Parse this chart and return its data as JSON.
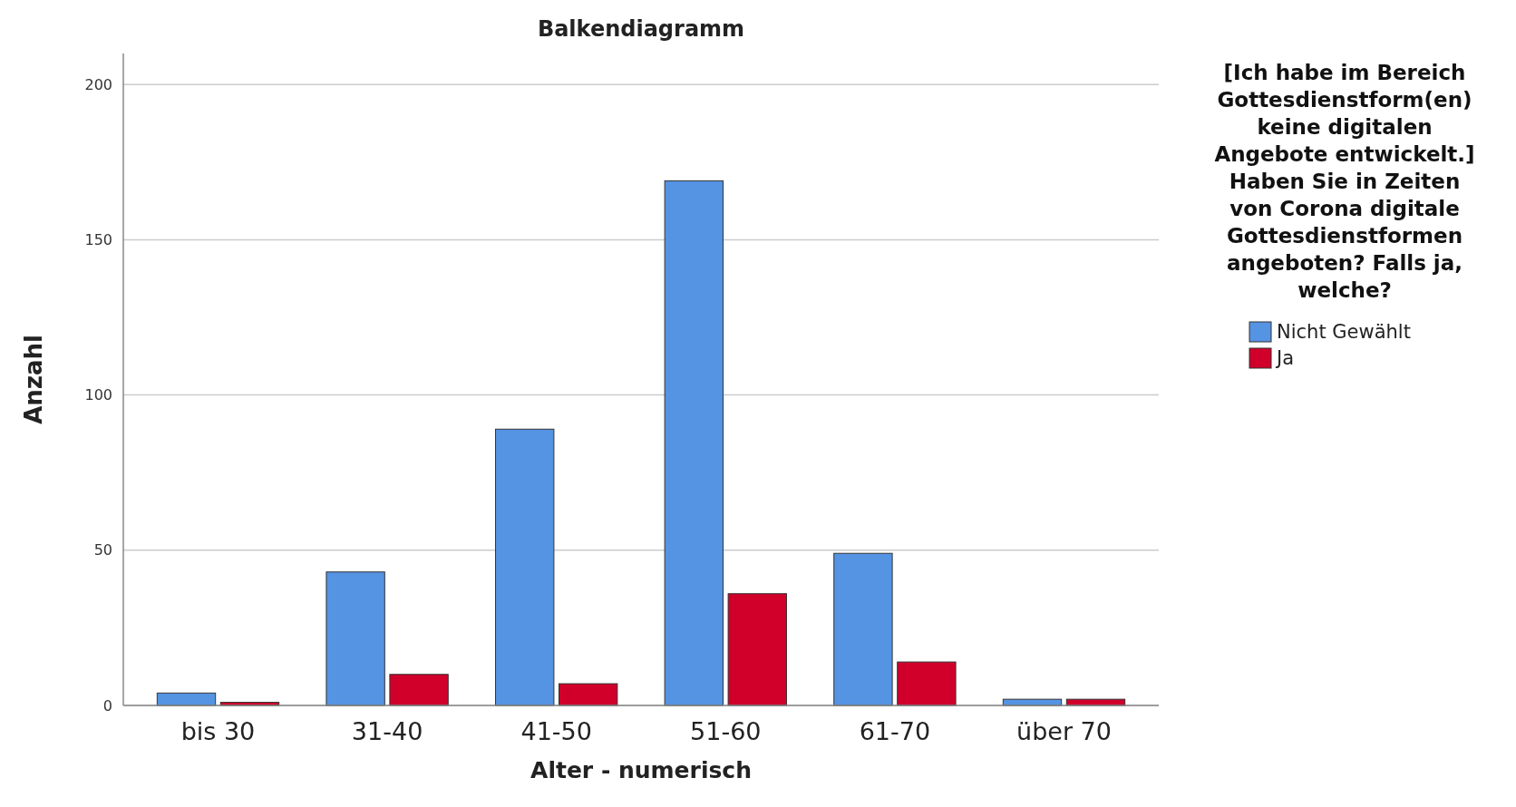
{
  "chart_data": {
    "type": "bar",
    "title": "Balkendiagramm",
    "xlabel": "Alter - numerisch",
    "ylabel": "Anzahl",
    "legend_title": "[Ich habe im Bereich Gottesdienstform(en) keine digitalen Angebote entwickelt.] Haben Sie in Zeiten von Corona digitale Gottesdienstformen angeboten? Falls ja, welche?",
    "categories": [
      "bis 30",
      "31-40",
      "41-50",
      "51-60",
      "61-70",
      "über 70"
    ],
    "series": [
      {
        "name": "Nicht Gewählt",
        "color": "#5593e3",
        "values": [
          4,
          43,
          89,
          169,
          49,
          2
        ]
      },
      {
        "name": "Ja",
        "color": "#d0002b",
        "values": [
          1,
          10,
          7,
          36,
          14,
          2
        ]
      }
    ],
    "ylim": [
      0,
      210
    ],
    "yticks": [
      0,
      50,
      100,
      150,
      200
    ],
    "grid": "y",
    "legend": "top right"
  }
}
